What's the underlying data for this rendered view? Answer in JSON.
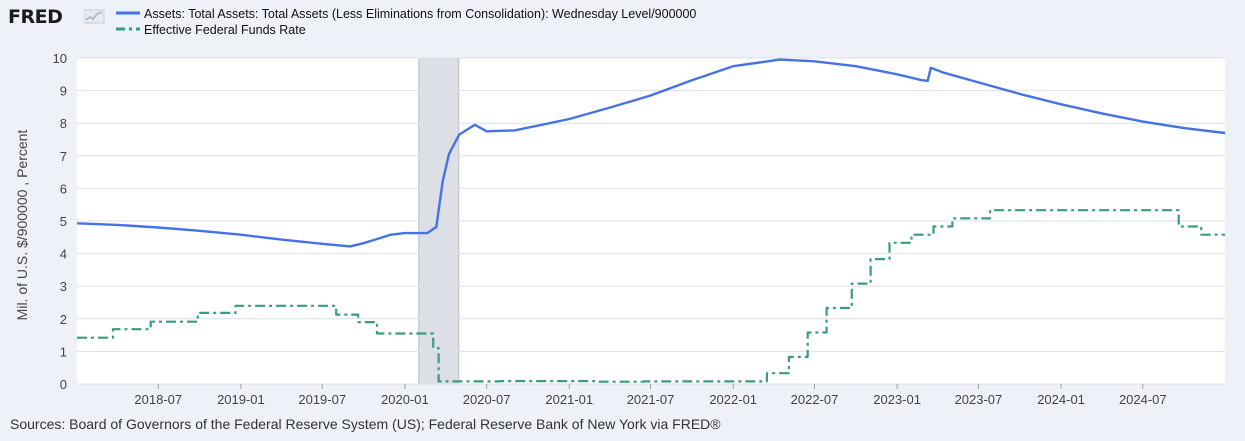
{
  "header": {
    "logo_text": "FRED",
    "logo_icon": "fred-line-chart-icon"
  },
  "legend": [
    {
      "label": "Assets: Total Assets: Total Assets (Less Eliminations from Consolidation): Wednesday Level/900000",
      "color": "#4572e5",
      "style": "solid"
    },
    {
      "label": "Effective Federal Funds Rate",
      "color": "#3a9b85",
      "style": "dashed"
    }
  ],
  "footer": {
    "source": "Sources: Board of Governors of the Federal Reserve System (US); Federal Reserve Bank of New York via FRED®"
  },
  "chart_data": {
    "type": "line",
    "ylabel": "Mil. of U.S. $/900000 , Percent",
    "xlabel": "",
    "ylim": [
      0,
      10
    ],
    "xlim": [
      "2018-01-01",
      "2024-12-31"
    ],
    "grid": true,
    "y_ticks": [
      "0",
      "1",
      "2",
      "3",
      "4",
      "5",
      "6",
      "7",
      "8",
      "9",
      "10"
    ],
    "x_ticks": [
      "2018-07",
      "2019-01",
      "2019-07",
      "2020-01",
      "2020-07",
      "2021-01",
      "2021-07",
      "2022-01",
      "2022-07",
      "2023-01",
      "2023-07",
      "2024-01",
      "2024-07"
    ],
    "recession": {
      "start": "2020-02-01",
      "end": "2020-04-30",
      "color": "#dcdfe5"
    },
    "series": [
      {
        "name": "Assets: Total Assets: Total Assets (Less Eliminations from Consolidation): Wednesday Level/900000",
        "color": "#4572e5",
        "style": "solid",
        "points": [
          [
            "2018-01-01",
            4.93
          ],
          [
            "2018-04-01",
            4.88
          ],
          [
            "2018-07-01",
            4.8
          ],
          [
            "2018-10-01",
            4.7
          ],
          [
            "2019-01-01",
            4.58
          ],
          [
            "2019-04-01",
            4.43
          ],
          [
            "2019-07-01",
            4.3
          ],
          [
            "2019-09-01",
            4.22
          ],
          [
            "2019-10-01",
            4.32
          ],
          [
            "2019-11-01",
            4.45
          ],
          [
            "2019-12-01",
            4.58
          ],
          [
            "2020-01-01",
            4.63
          ],
          [
            "2020-02-20",
            4.63
          ],
          [
            "2020-03-11",
            4.82
          ],
          [
            "2020-03-25",
            6.2
          ],
          [
            "2020-04-08",
            7.05
          ],
          [
            "2020-05-01",
            7.65
          ],
          [
            "2020-06-05",
            7.95
          ],
          [
            "2020-07-01",
            7.75
          ],
          [
            "2020-09-01",
            7.78
          ],
          [
            "2020-11-01",
            7.95
          ],
          [
            "2021-01-01",
            8.13
          ],
          [
            "2021-04-01",
            8.48
          ],
          [
            "2021-07-01",
            8.85
          ],
          [
            "2021-10-01",
            9.32
          ],
          [
            "2022-01-01",
            9.75
          ],
          [
            "2022-04-15",
            9.95
          ],
          [
            "2022-07-01",
            9.9
          ],
          [
            "2022-10-01",
            9.75
          ],
          [
            "2023-01-01",
            9.5
          ],
          [
            "2023-02-25",
            9.32
          ],
          [
            "2023-03-10",
            9.3
          ],
          [
            "2023-03-17",
            9.7
          ],
          [
            "2023-04-15",
            9.55
          ],
          [
            "2023-07-01",
            9.25
          ],
          [
            "2023-10-01",
            8.9
          ],
          [
            "2024-01-01",
            8.58
          ],
          [
            "2024-04-01",
            8.3
          ],
          [
            "2024-07-01",
            8.05
          ],
          [
            "2024-10-01",
            7.85
          ],
          [
            "2024-12-31",
            7.7
          ]
        ]
      },
      {
        "name": "Effective Federal Funds Rate",
        "color": "#3a9b85",
        "style": "dashed",
        "step": true,
        "points": [
          [
            "2018-01-01",
            1.42
          ],
          [
            "2018-03-22",
            1.68
          ],
          [
            "2018-06-14",
            1.91
          ],
          [
            "2018-09-27",
            2.18
          ],
          [
            "2018-12-20",
            2.4
          ],
          [
            "2019-08-01",
            2.13
          ],
          [
            "2019-09-19",
            1.9
          ],
          [
            "2019-10-31",
            1.55
          ],
          [
            "2020-03-04",
            1.1
          ],
          [
            "2020-03-16",
            0.08
          ],
          [
            "2020-08-01",
            0.09
          ],
          [
            "2021-03-01",
            0.07
          ],
          [
            "2021-06-17",
            0.08
          ],
          [
            "2022-03-17",
            0.33
          ],
          [
            "2022-05-05",
            0.83
          ],
          [
            "2022-06-16",
            1.58
          ],
          [
            "2022-07-28",
            2.33
          ],
          [
            "2022-09-22",
            3.08
          ],
          [
            "2022-11-03",
            3.83
          ],
          [
            "2022-12-15",
            4.33
          ],
          [
            "2023-02-02",
            4.58
          ],
          [
            "2023-03-23",
            4.83
          ],
          [
            "2023-05-04",
            5.08
          ],
          [
            "2023-07-27",
            5.33
          ],
          [
            "2024-09-19",
            4.83
          ],
          [
            "2024-11-08",
            4.58
          ],
          [
            "2024-12-31",
            4.58
          ]
        ]
      }
    ]
  }
}
